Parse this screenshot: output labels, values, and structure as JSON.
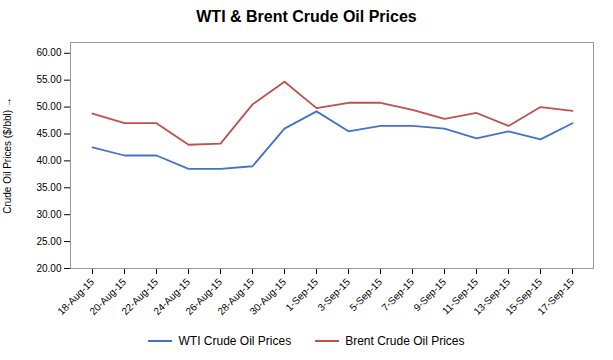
{
  "chart_data": {
    "type": "line",
    "title": "WTI & Brent Crude Oil Prices",
    "ylabel": "Crude Oil Prices ($/bbl)",
    "categories": [
      "18-Aug-15",
      "20-Aug-15",
      "22-Aug-15",
      "24-Aug-15",
      "26-Aug-15",
      "28-Aug-15",
      "30-Aug-15",
      "1-Sep-15",
      "3-Sep-15",
      "5-Sep-15",
      "7-Sep-15",
      "9-Sep-15",
      "11-Sep-15",
      "13-Sep-15",
      "15-Sep-15",
      "17-Sep-15"
    ],
    "series": [
      {
        "name": "WTI Crude Oil Prices",
        "color": "#4472C4",
        "values": [
          42.5,
          41.0,
          41.0,
          38.5,
          38.5,
          39.0,
          46.0,
          49.2,
          45.5,
          46.5,
          46.5,
          46.0,
          44.2,
          45.5,
          44.0,
          47.0
        ]
      },
      {
        "name": "Brent Crude Oil Prices",
        "color": "#C0504D",
        "values": [
          48.8,
          47.0,
          47.0,
          43.0,
          43.2,
          50.5,
          54.7,
          49.8,
          50.8,
          50.8,
          49.5,
          47.8,
          48.9,
          46.5,
          50.0,
          49.3
        ]
      }
    ],
    "ylim": [
      20.0,
      62.0
    ],
    "yticks": [
      {
        "value": 20,
        "label": "20.00"
      },
      {
        "value": 25,
        "label": "25.00"
      },
      {
        "value": 30,
        "label": "30.00"
      },
      {
        "value": 35,
        "label": "35.00"
      },
      {
        "value": 40,
        "label": "40.00"
      },
      {
        "value": 45,
        "label": "45.00"
      },
      {
        "value": 50,
        "label": "50.00"
      },
      {
        "value": 55,
        "label": "55.00"
      },
      {
        "value": 60,
        "label": "60.00"
      }
    ],
    "grid": false,
    "legend": "bottom"
  }
}
